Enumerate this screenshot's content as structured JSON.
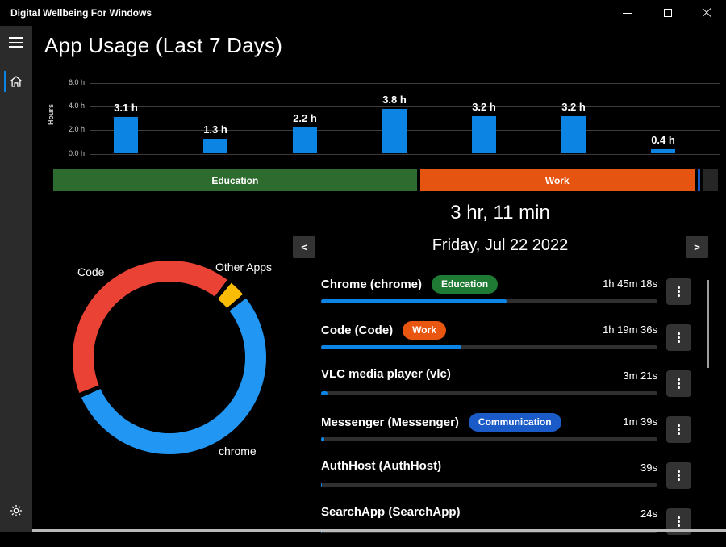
{
  "window": {
    "title": "Digital Wellbeing For Windows"
  },
  "page": {
    "title": "App Usage (Last 7 Days)"
  },
  "colors": {
    "accent_blue": "#0b84e4",
    "donut_red": "#ea4335",
    "donut_yellow": "#fbbc05",
    "donut_blue": "#2196f3",
    "education_green": "#1f7a33",
    "category_green": "#2d6b2e",
    "work_orange": "#e55511",
    "communication_blue": "#1b5bc8",
    "other_gray": "#262626"
  },
  "chart_data": [
    {
      "type": "bar",
      "title": "Hours used per day, last 7 days",
      "ylabel": "Hours",
      "ylim": [
        0,
        6
      ],
      "ytick_labels": [
        "6.0 h",
        "4.0 h",
        "2.0 h",
        "0.0 h"
      ],
      "ytick_values": [
        6,
        4,
        2,
        0
      ],
      "x_tick_labels": [],
      "values": [
        3.1,
        1.3,
        2.2,
        3.8,
        3.2,
        3.2,
        0.4
      ],
      "bar_labels": [
        "3.1 h",
        "1.3 h",
        "2.2 h",
        "3.8 h",
        "3.2 h",
        "3.2 h",
        "0.4 h"
      ],
      "bar_color": "#0b84e4",
      "grid": true
    },
    {
      "type": "pie",
      "title": "Usage share by app (donut)",
      "labels": [
        "Code",
        "Other Apps",
        "chrome"
      ],
      "values_percent": [
        42,
        3.5,
        54.5
      ],
      "colors": [
        "#ea4335",
        "#fbbc05",
        "#2196f3"
      ],
      "start_angle_deg": 247,
      "gap_deg": 3,
      "ring_thickness_px": 26
    },
    {
      "type": "bar",
      "title": "Usage share by category (stacked horizontal)",
      "segments": [
        {
          "label": "Education",
          "share_percent": 55.5,
          "color": "#2d6b2e"
        },
        {
          "label": "Work",
          "share_percent": 41.9,
          "color": "#e55511"
        },
        {
          "label": "",
          "share_percent": 0.4,
          "color": "#1b5bc8"
        },
        {
          "label": "",
          "share_percent": 2.2,
          "color": "#262626"
        }
      ]
    }
  ],
  "summary": {
    "total_time": "3 hr, 11 min",
    "date": "Friday, Jul 22 2022",
    "prev_glyph": "<",
    "next_glyph": ">"
  },
  "apps": [
    {
      "name": "Chrome (chrome)",
      "badge": "Education",
      "badge_color": "#1f7a33",
      "time": "1h 45m 18s",
      "percent": 55.1
    },
    {
      "name": "Code (Code)",
      "badge": "Work",
      "badge_color": "#e8560f",
      "time": "1h 19m 36s",
      "percent": 41.7
    },
    {
      "name": "VLC media player (vlc)",
      "badge": null,
      "time": "3m 21s",
      "percent": 1.8
    },
    {
      "name": "Messenger (Messenger)",
      "badge": "Communication",
      "badge_color": "#1b5bc8",
      "time": "1m 39s",
      "percent": 0.9
    },
    {
      "name": "AuthHost (AuthHost)",
      "badge": null,
      "time": "39s",
      "percent": 0.35
    },
    {
      "name": "SearchApp (SearchApp)",
      "badge": null,
      "time": "24s",
      "percent": 0.2
    }
  ]
}
